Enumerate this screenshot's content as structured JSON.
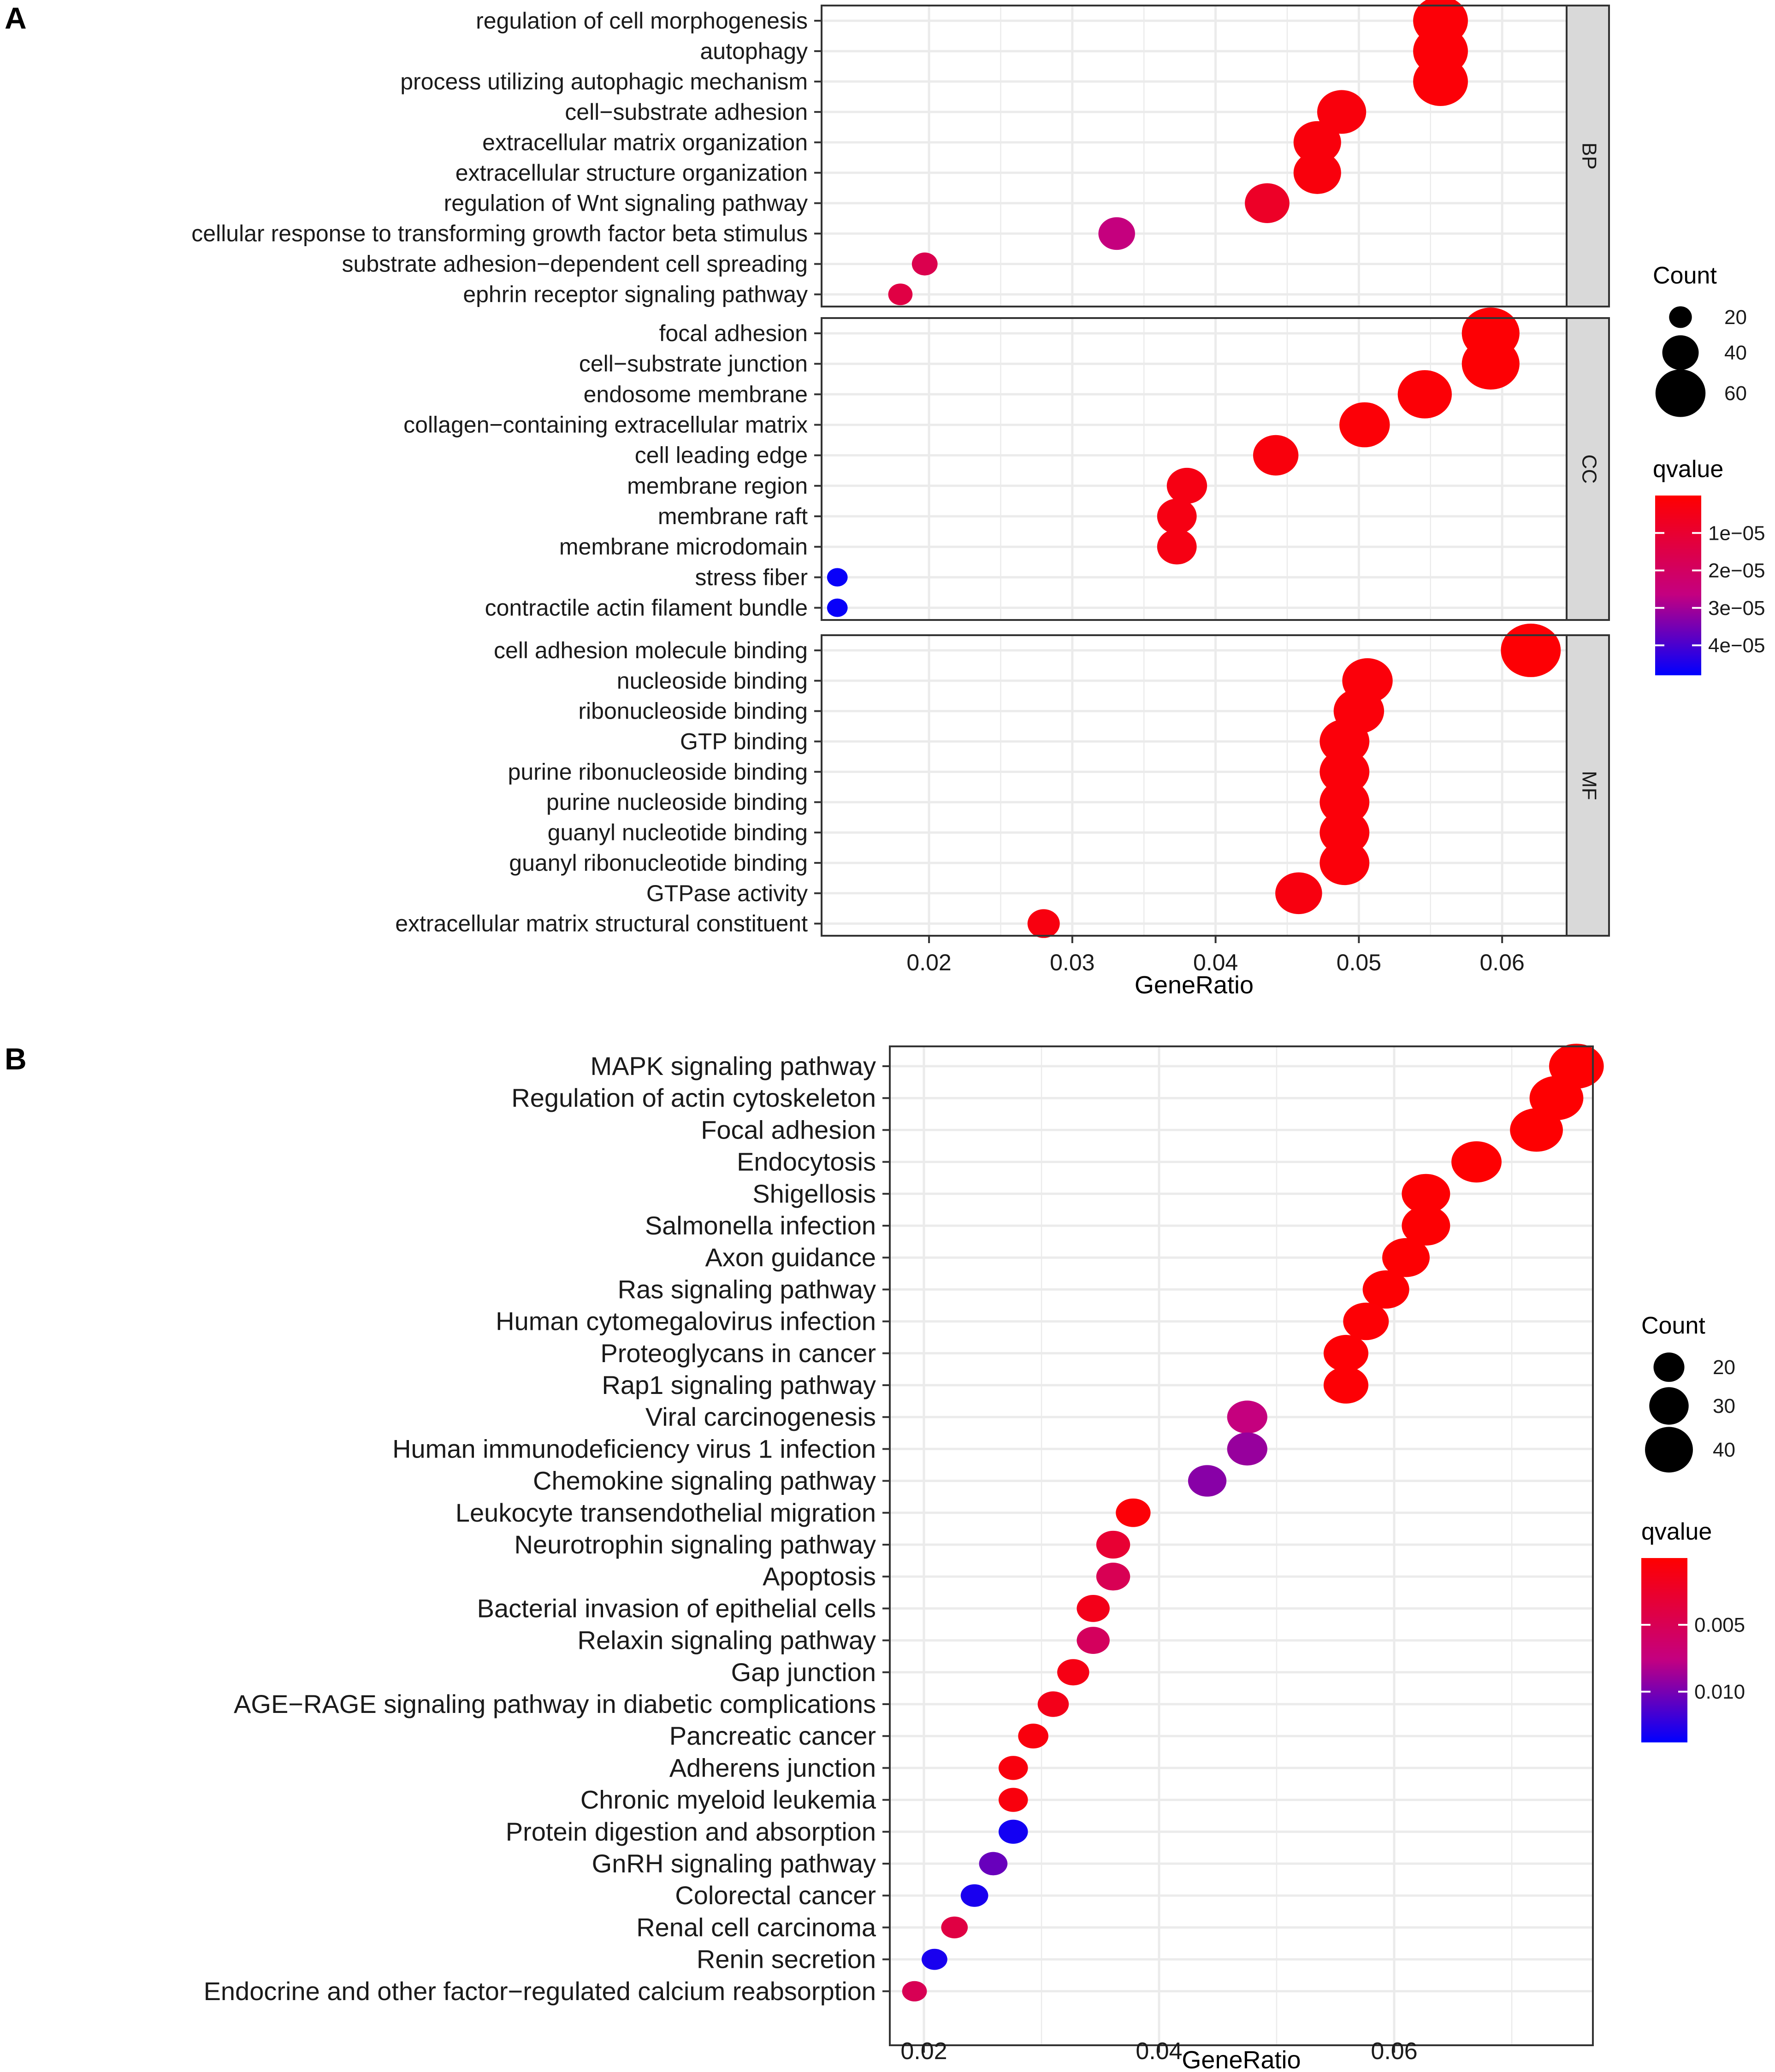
{
  "colors": {
    "q_low": "#ff0000",
    "q_high": "#0000ff",
    "strip_fill": "#d9d9d9",
    "grid": "#ebebeb",
    "frame": "#333333"
  },
  "chart_data": [
    {
      "type": "scatter",
      "panel_label": "A",
      "xlabel": "GeneRatio",
      "xlim": [
        0.0125,
        0.0645
      ],
      "x_ticks": [
        0.02,
        0.03,
        0.04,
        0.05,
        0.06
      ],
      "x_tick_labels": [
        "0.02",
        "0.03",
        "0.04",
        "0.05",
        "0.06"
      ],
      "size_legend": {
        "title": "Count",
        "values": [
          20,
          40,
          60
        ],
        "labels": [
          "20",
          "40",
          "60"
        ]
      },
      "color_legend": {
        "title": "qvalue",
        "range": [
          0,
          4.8e-05
        ],
        "ticks": [
          1e-05,
          2e-05,
          3e-05,
          4e-05
        ],
        "labels": [
          "1e−05",
          "2e−05",
          "3e−05",
          "4e−05"
        ]
      },
      "facets": [
        {
          "strip": "BP",
          "points": [
            {
              "term": "regulation of cell morphogenesis",
              "x": 0.0557,
              "count": 62,
              "q": 1.5e-06
            },
            {
              "term": "autophagy",
              "x": 0.0557,
              "count": 62,
              "q": 1.5e-06
            },
            {
              "term": "process utilizing autophagic mechanism",
              "x": 0.0557,
              "count": 62,
              "q": 1.5e-06
            },
            {
              "term": "cell−substrate adhesion",
              "x": 0.0488,
              "count": 54,
              "q": 2.5e-06
            },
            {
              "term": "extracellular matrix organization",
              "x": 0.0471,
              "count": 52,
              "q": 2.5e-06
            },
            {
              "term": "extracellular structure organization",
              "x": 0.0471,
              "count": 52,
              "q": 2.5e-06
            },
            {
              "term": "regulation of Wnt signaling pathway",
              "x": 0.0436,
              "count": 48,
              "q": 8e-06
            },
            {
              "term": "cellular response to transforming growth factor beta stimulus",
              "x": 0.0331,
              "count": 37,
              "q": 2.6e-05
            },
            {
              "term": "substrate adhesion−dependent cell spreading",
              "x": 0.0197,
              "count": 22,
              "q": 1.6e-05
            },
            {
              "term": "ephrin receptor signaling pathway",
              "x": 0.018,
              "count": 20,
              "q": 1.4e-05
            }
          ]
        },
        {
          "strip": "CC",
          "points": [
            {
              "term": "focal adhesion",
              "x": 0.0592,
              "count": 66,
              "q": 8e-07
            },
            {
              "term": "cell−substrate junction",
              "x": 0.0592,
              "count": 66,
              "q": 8e-07
            },
            {
              "term": "endosome membrane",
              "x": 0.0546,
              "count": 61,
              "q": 1.2e-06
            },
            {
              "term": "collagen−containing extracellular matrix",
              "x": 0.0504,
              "count": 56,
              "q": 1.5e-06
            },
            {
              "term": "cell leading edge",
              "x": 0.0442,
              "count": 49,
              "q": 2.5e-06
            },
            {
              "term": "membrane region",
              "x": 0.038,
              "count": 42,
              "q": 4e-06
            },
            {
              "term": "membrane raft",
              "x": 0.0373,
              "count": 41,
              "q": 4e-06
            },
            {
              "term": "membrane microdomain",
              "x": 0.0373,
              "count": 41,
              "q": 4e-06
            },
            {
              "term": "stress fiber",
              "x": 0.0136,
              "count": 15,
              "q": 4.7e-05
            },
            {
              "term": "contractile actin filament bundle",
              "x": 0.0136,
              "count": 15,
              "q": 4.7e-05
            }
          ]
        },
        {
          "strip": "MF",
          "points": [
            {
              "term": "cell adhesion molecule binding",
              "x": 0.062,
              "count": 69,
              "q": 8e-07
            },
            {
              "term": "nucleoside binding",
              "x": 0.0506,
              "count": 56,
              "q": 2e-06
            },
            {
              "term": "ribonucleoside binding",
              "x": 0.05,
              "count": 56,
              "q": 2e-06
            },
            {
              "term": "GTP binding",
              "x": 0.049,
              "count": 55,
              "q": 2e-06
            },
            {
              "term": "purine ribonucleoside binding",
              "x": 0.049,
              "count": 55,
              "q": 2e-06
            },
            {
              "term": "purine nucleoside binding",
              "x": 0.049,
              "count": 55,
              "q": 2e-06
            },
            {
              "term": "guanyl nucleotide binding",
              "x": 0.049,
              "count": 55,
              "q": 2e-06
            },
            {
              "term": "guanyl ribonucleotide binding",
              "x": 0.049,
              "count": 55,
              "q": 2e-06
            },
            {
              "term": "GTPase activity",
              "x": 0.0458,
              "count": 51,
              "q": 3e-06
            },
            {
              "term": "extracellular matrix structural constituent",
              "x": 0.028,
              "count": 31,
              "q": 3e-06
            }
          ]
        }
      ]
    },
    {
      "type": "scatter",
      "panel_label": "B",
      "xlabel": "GeneRatio",
      "xlim": [
        0.0171,
        0.0769
      ],
      "x_ticks": [
        0.02,
        0.04,
        0.06
      ],
      "x_tick_labels": [
        "0.02",
        "0.04",
        "0.06"
      ],
      "size_legend": {
        "title": "Count",
        "values": [
          20,
          30,
          40
        ],
        "labels": [
          "20",
          "30",
          "40"
        ]
      },
      "color_legend": {
        "title": "qvalue",
        "range": [
          0,
          0.0138
        ],
        "ticks": [
          0.005,
          0.01
        ],
        "labels": [
          "0.005",
          "0.010"
        ]
      },
      "points": [
        {
          "term": "MAPK signaling pathway",
          "x": 0.0755,
          "count": 44,
          "q": 0.0001
        },
        {
          "term": "Regulation of actin cytoskeleton",
          "x": 0.0738,
          "count": 43,
          "q": 0.0001
        },
        {
          "term": "Focal adhesion",
          "x": 0.0721,
          "count": 42,
          "q": 0.0001
        },
        {
          "term": "Endocytosis",
          "x": 0.067,
          "count": 39,
          "q": 0.0001
        },
        {
          "term": "Shigellosis",
          "x": 0.0627,
          "count": 37,
          "q": 0.0002
        },
        {
          "term": "Salmonella infection",
          "x": 0.0627,
          "count": 37,
          "q": 0.0002
        },
        {
          "term": "Axon guidance",
          "x": 0.061,
          "count": 36,
          "q": 0.0002
        },
        {
          "term": "Ras signaling pathway",
          "x": 0.0593,
          "count": 35,
          "q": 0.0002
        },
        {
          "term": "Human cytomegalovirus infection",
          "x": 0.0576,
          "count": 34,
          "q": 0.0003
        },
        {
          "term": "Proteoglycans in cancer",
          "x": 0.0559,
          "count": 33,
          "q": 0.0003
        },
        {
          "term": "Rap1 signaling pathway",
          "x": 0.0559,
          "count": 33,
          "q": 0.0003
        },
        {
          "term": "Viral carcinogenesis",
          "x": 0.0475,
          "count": 28,
          "q": 0.0075
        },
        {
          "term": "Human immunodeficiency virus 1 infection",
          "x": 0.0475,
          "count": 28,
          "q": 0.009
        },
        {
          "term": "Chemokine signaling pathway",
          "x": 0.0441,
          "count": 26,
          "q": 0.0095
        },
        {
          "term": "Leukocyte transendothelial migration",
          "x": 0.0378,
          "count": 22,
          "q": 0.0004
        },
        {
          "term": "Neurotrophin signaling pathway",
          "x": 0.0361,
          "count": 21,
          "q": 0.003
        },
        {
          "term": "Apoptosis",
          "x": 0.0361,
          "count": 21,
          "q": 0.005
        },
        {
          "term": "Bacterial invasion of epithelial cells",
          "x": 0.0344,
          "count": 20,
          "q": 0.0015
        },
        {
          "term": "Relaxin signaling pathway",
          "x": 0.0344,
          "count": 20,
          "q": 0.0055
        },
        {
          "term": "Gap junction",
          "x": 0.0327,
          "count": 19,
          "q": 0.0012
        },
        {
          "term": "AGE−RAGE signaling pathway in diabetic complications",
          "x": 0.031,
          "count": 18,
          "q": 0.0015
        },
        {
          "term": "Pancreatic cancer",
          "x": 0.0293,
          "count": 17,
          "q": 0.0008
        },
        {
          "term": "Adherens junction",
          "x": 0.0276,
          "count": 16,
          "q": 0.0008
        },
        {
          "term": "Chronic myeloid leukemia",
          "x": 0.0276,
          "count": 16,
          "q": 0.0008
        },
        {
          "term": "Protein digestion and absorption",
          "x": 0.0276,
          "count": 16,
          "q": 0.0132
        },
        {
          "term": "GnRH signaling pathway",
          "x": 0.0259,
          "count": 15,
          "q": 0.0105
        },
        {
          "term": "Colorectal cancer",
          "x": 0.0243,
          "count": 14,
          "q": 0.013
        },
        {
          "term": "Renal cell carcinoma",
          "x": 0.0226,
          "count": 13,
          "q": 0.004
        },
        {
          "term": "Renin secretion",
          "x": 0.0209,
          "count": 12,
          "q": 0.013
        },
        {
          "term": "Endocrine and other factor−regulated calcium reabsorption",
          "x": 0.0192,
          "count": 11,
          "q": 0.005
        }
      ]
    }
  ]
}
